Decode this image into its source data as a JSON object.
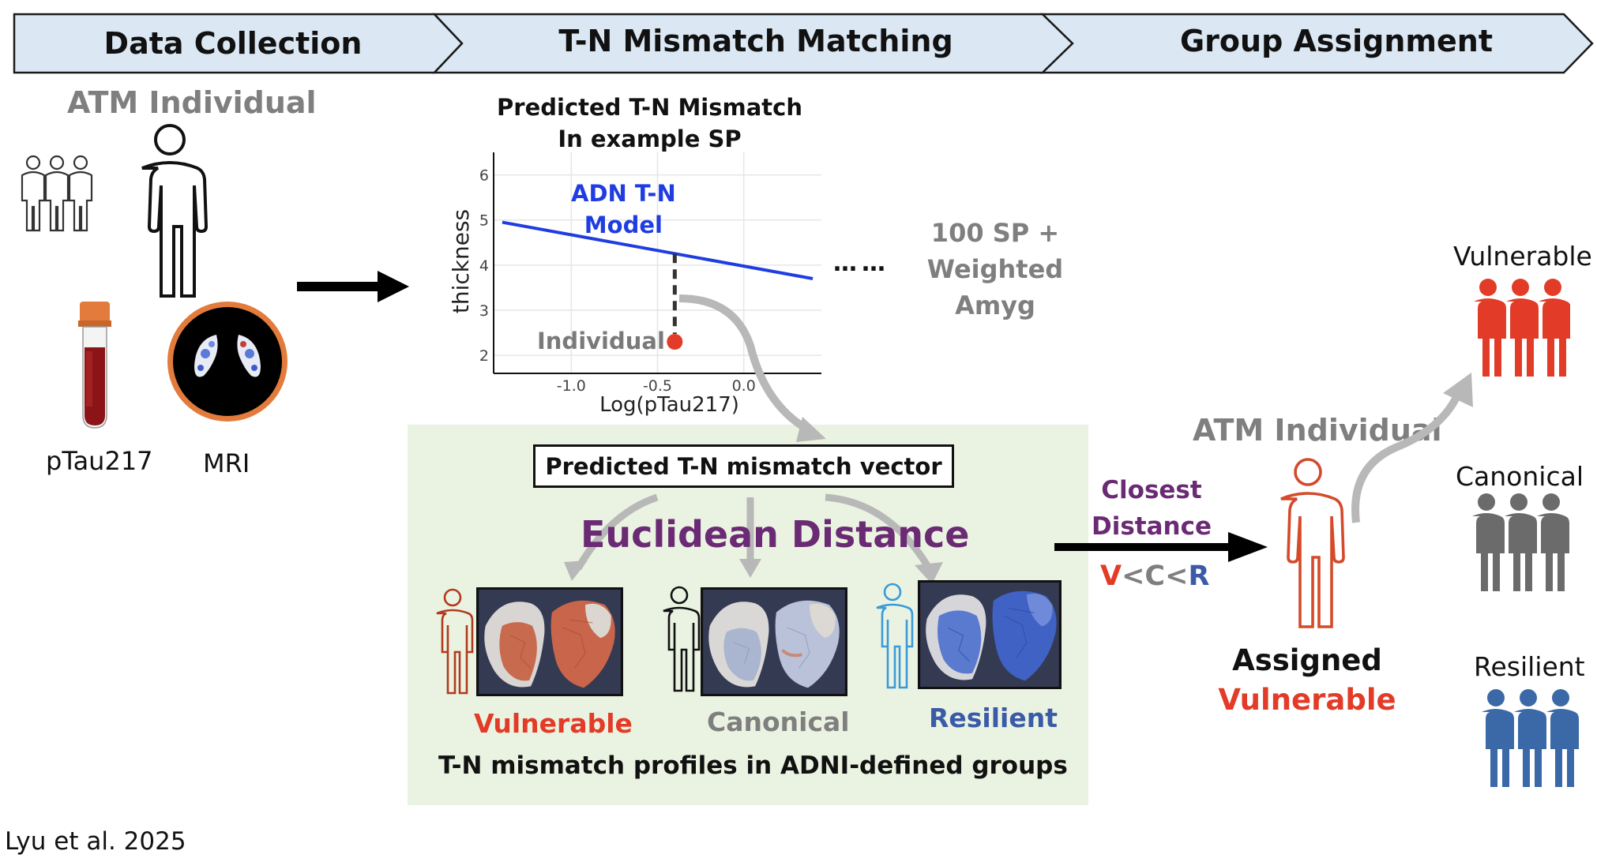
{
  "stages": {
    "data_collection": "Data Collection",
    "mismatch_matching": "T-N Mismatch Matching",
    "group_assignment": "Group Assignment"
  },
  "left": {
    "atm_individual": "ATM Individual",
    "ptau_label": "pTau217",
    "mri_label": "MRI"
  },
  "plot": {
    "title_line1": "Predicted T-N Mismatch",
    "title_line2": "In example SP",
    "model_label_line1": "ADN T-N",
    "model_label_line2": "Model",
    "individual_label": "Individual",
    "sp_note_line1": "100 SP +",
    "sp_note_line2": "Weighted",
    "sp_note_line3": "Amyg"
  },
  "chart_data": {
    "type": "line",
    "xlabel": "Log(pTau217)",
    "ylabel": "thickness",
    "x_ticks": [
      "-1.0",
      "-0.5",
      "0.0"
    ],
    "y_ticks": [
      "2",
      "3",
      "4",
      "5",
      "6"
    ],
    "xlim": [
      -1.45,
      0.45
    ],
    "ylim": [
      1.6,
      6.5
    ],
    "series": [
      {
        "x": [
          -1.4,
          0.4
        ],
        "y": [
          4.95,
          3.7
        ],
        "color": "#1f3de0"
      }
    ],
    "point": {
      "x": -0.4,
      "y": 2.3,
      "color": "#e23c28"
    }
  },
  "middle": {
    "vector_box": "Predicted T-N mismatch vector",
    "euclidean": "Euclidean Distance",
    "group_vulnerable": "Vulnerable",
    "group_canonical": "Canonical",
    "group_resilient": "Resilient",
    "profiles_caption": "T-N mismatch profiles in ADNI-defined groups"
  },
  "right": {
    "closest_line1": "Closest",
    "closest_line2": "Distance",
    "order_v": "V",
    "order_lt1": "<",
    "order_c": "C",
    "order_lt2": "<",
    "order_r": "R",
    "atm_individual": "ATM Individual",
    "assigned": "Assigned",
    "assigned_group": "Vulnerable",
    "vulnerable": "Vulnerable",
    "canonical": "Canonical",
    "resilient": "Resilient"
  },
  "citation": "Lyu et al. 2025",
  "colors": {
    "stage_fill": "#dbe7f3",
    "vulnerable": "#e23c28",
    "canonical": "#6b6b6b",
    "resilient": "#3b69a8",
    "model_line": "#1f3de0",
    "purple": "#6b2a74",
    "panel_green": "#eaf3e1"
  }
}
